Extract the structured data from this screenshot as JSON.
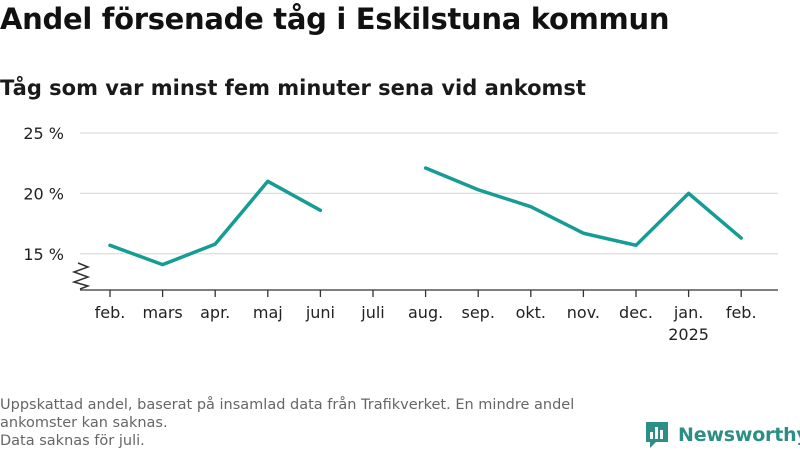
{
  "header": {
    "title": "Andel försenade tåg i Eskilstuna kommun",
    "subtitle": "Tåg som var minst fem minuter sena vid ankomst"
  },
  "chart_data": {
    "type": "line",
    "title": "Andel försenade tåg i Eskilstuna kommun",
    "subtitle": "Tåg som var minst fem minuter sena vid ankomst",
    "xlabel": "",
    "ylabel": "",
    "categories": [
      "feb.",
      "mars",
      "apr.",
      "maj",
      "juni",
      "juli",
      "aug.",
      "sep.",
      "okt.",
      "nov.",
      "dec.",
      "jan.",
      "feb."
    ],
    "category_sublabels": [
      "",
      "",
      "",
      "",
      "",
      "",
      "",
      "",
      "",
      "",
      "",
      "2025",
      ""
    ],
    "series": [
      {
        "values": [
          15.7,
          14.1,
          15.8,
          21.0,
          18.6,
          null,
          22.1,
          20.3,
          18.9,
          16.7,
          15.7,
          20.0,
          16.3
        ]
      }
    ],
    "y_ticks": [
      15,
      20,
      25
    ],
    "y_tick_labels": [
      "15 %",
      "20 %",
      "25 %"
    ],
    "ylim": [
      12,
      25
    ],
    "y_axis_break": true,
    "grid": true,
    "line_color": "#169c94",
    "grid_color": "#dddddd"
  },
  "footnote": {
    "line1": "Uppskattad andel, baserat på insamlad data från Trafikverket. En mindre andel ankomster kan saknas.",
    "line2": "Data saknas för juli."
  },
  "logo": {
    "text": "Newsworthy",
    "icon": "newsworthy-bar-chart-icon",
    "color": "#2b8f86"
  }
}
